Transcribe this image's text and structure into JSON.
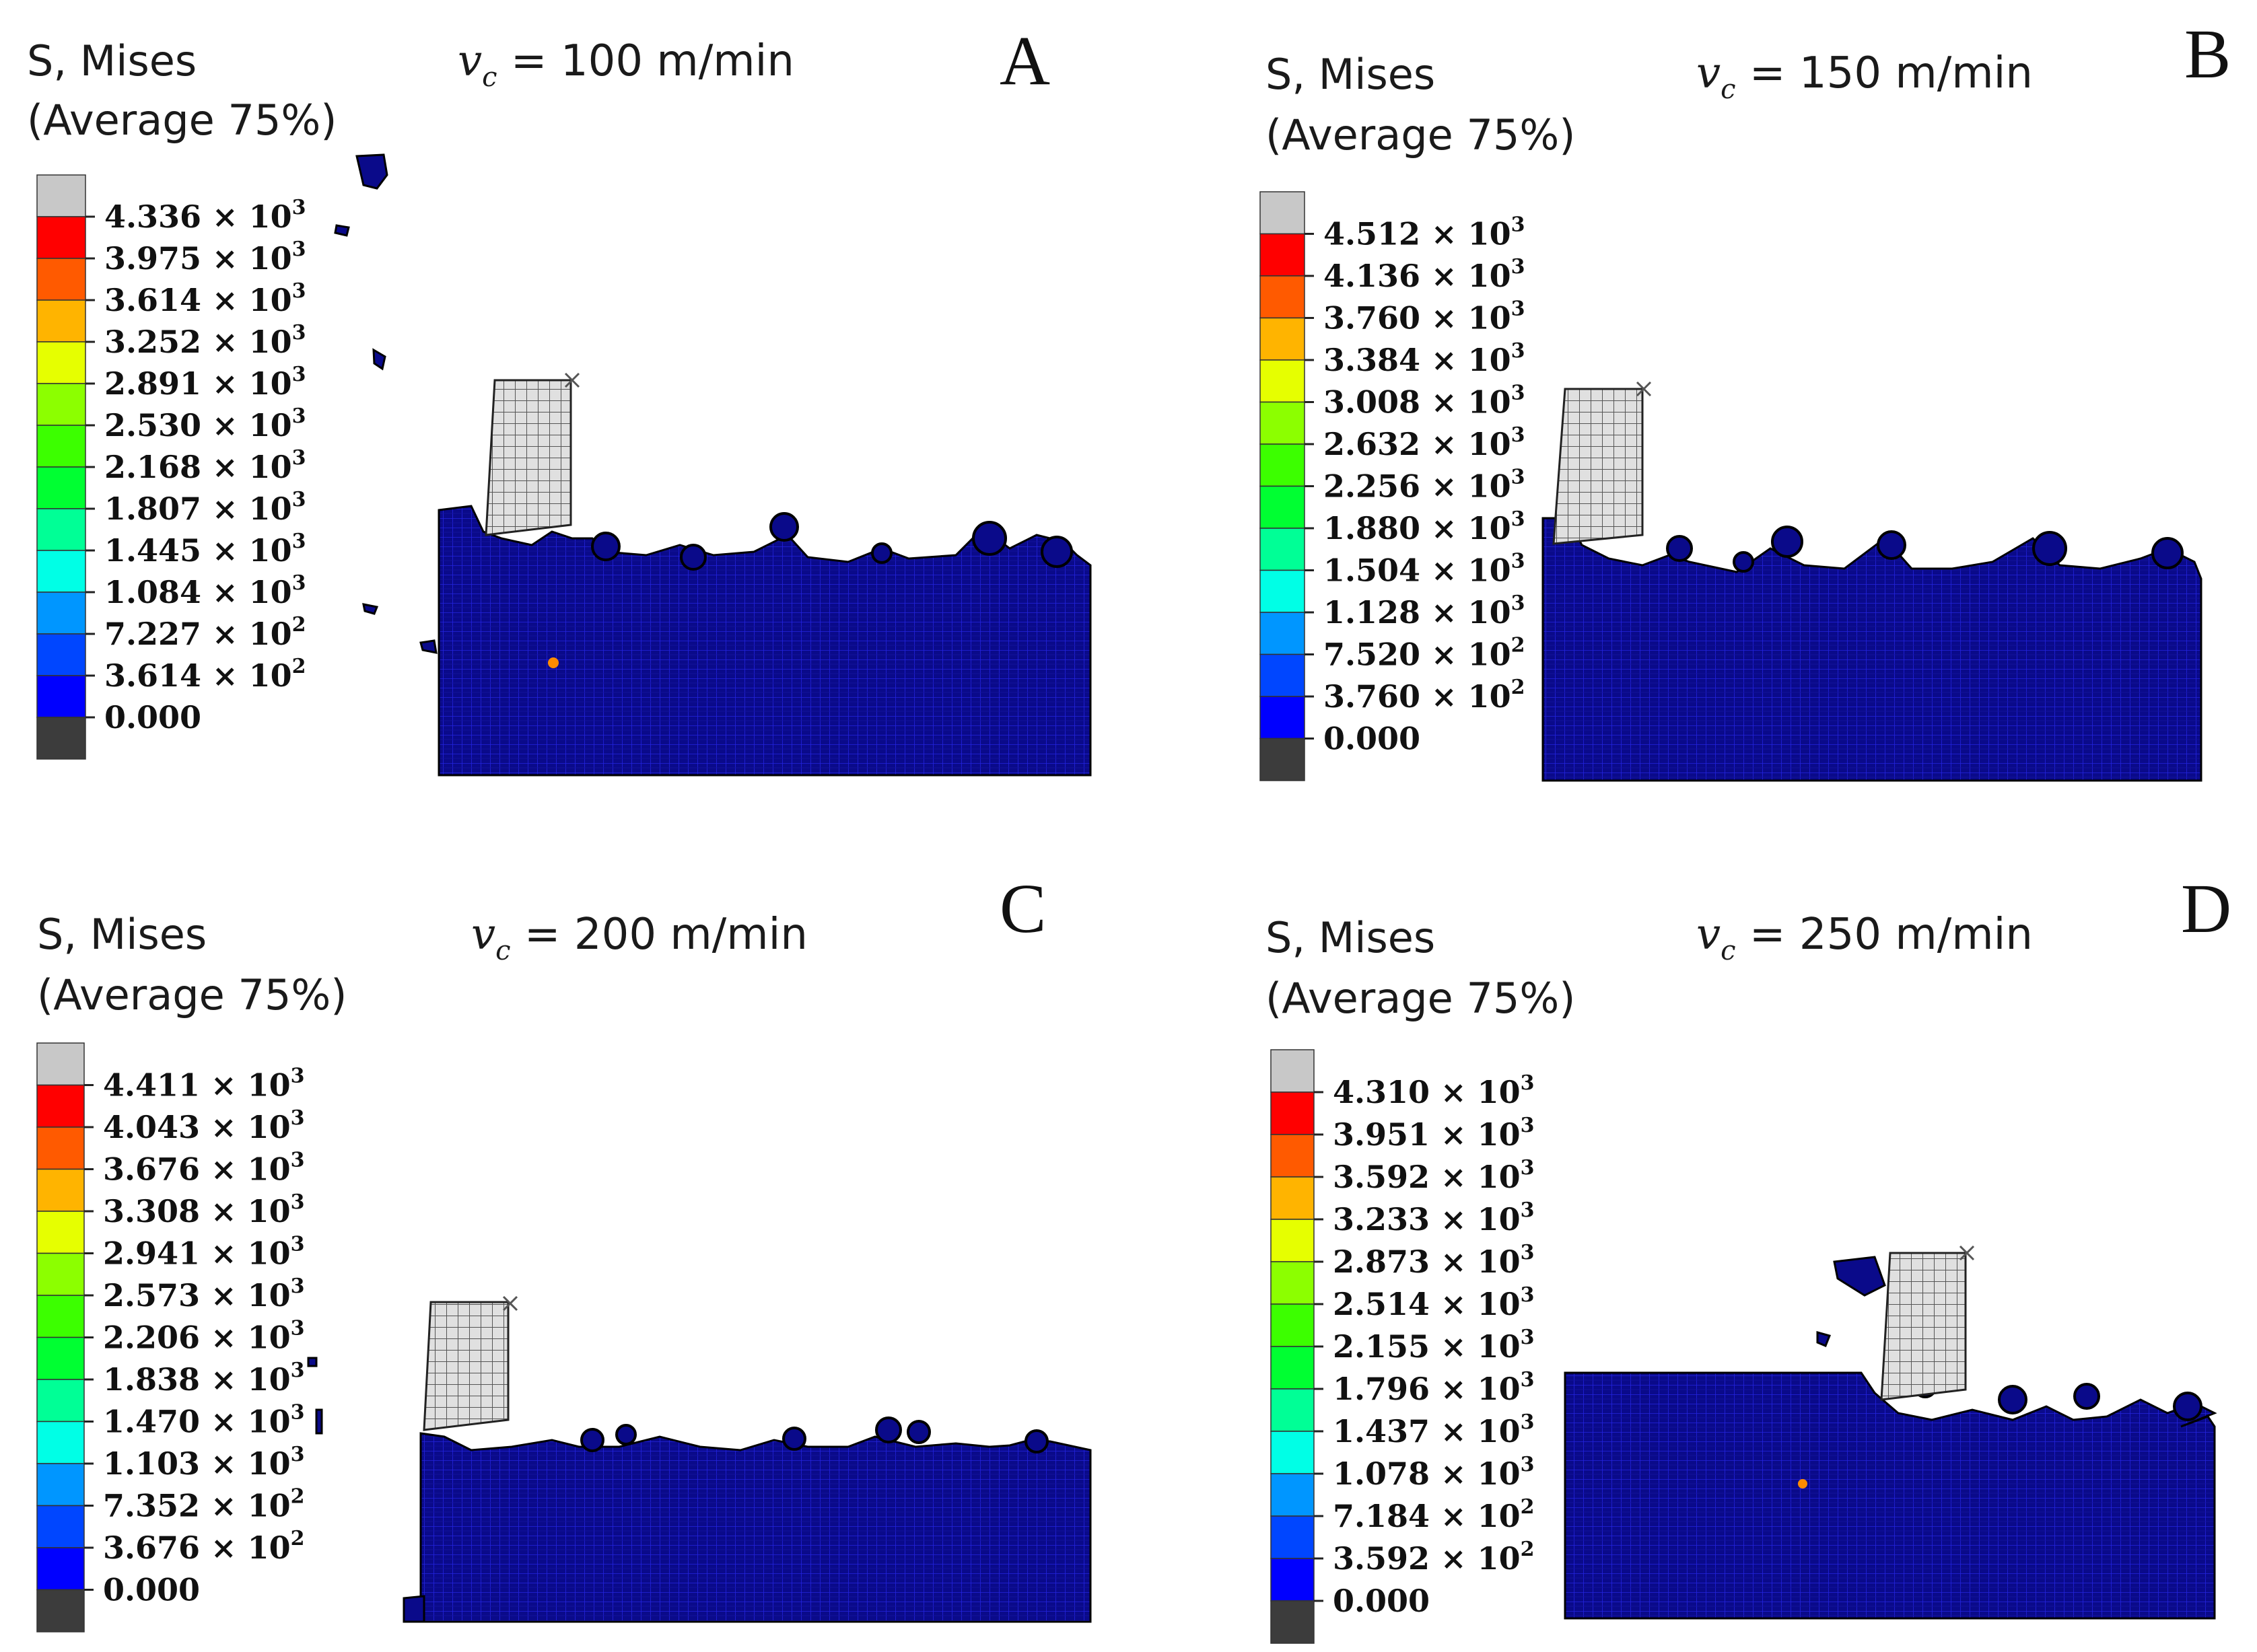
{
  "figure": {
    "panels": [
      {
        "id": "A",
        "letter": "A",
        "title_line1": "S, Mises",
        "title_line2": "(Average 75%)",
        "speed": {
          "symbol": "v",
          "subscript": "c",
          "text": " = 100 m/min"
        },
        "legend_labels": [
          "4.336 × 10³",
          "3.975 × 10³",
          "3.614 × 10³",
          "3.252 × 10³",
          "2.891 × 10³",
          "2.530 × 10³",
          "2.168 × 10³",
          "1.807 × 10³",
          "1.445 × 10³",
          "1.084 × 10³",
          "7.227 × 10²",
          "3.614 × 10²",
          "0.000"
        ]
      },
      {
        "id": "B",
        "letter": "B",
        "title_line1": "S, Mises",
        "title_line2": "(Average 75%)",
        "speed": {
          "symbol": "v",
          "subscript": "c",
          "text": " = 150 m/min"
        },
        "legend_labels": [
          "4.512 × 10³",
          "4.136 × 10³",
          "3.760 × 10³",
          "3.384 × 10³",
          "3.008 × 10³",
          "2.632 × 10³",
          "2.256 × 10³",
          "1.880 × 10³",
          "1.504 × 10³",
          "1.128 × 10³",
          "7.520 × 10²",
          "3.760 × 10²",
          "0.000"
        ]
      },
      {
        "id": "C",
        "letter": "C",
        "title_line1": "S, Mises",
        "title_line2": "(Average 75%)",
        "speed": {
          "symbol": "v",
          "subscript": "c",
          "text": " = 200 m/min"
        },
        "legend_labels": [
          "4.411 × 10³",
          "4.043 × 10³",
          "3.676 × 10³",
          "3.308 × 10³",
          "2.941 × 10³",
          "2.573 × 10³",
          "2.206 × 10³",
          "1.838 × 10³",
          "1.470 × 10³",
          "1.103 × 10³",
          "7.352 × 10²",
          "3.676 × 10²",
          "0.000"
        ]
      },
      {
        "id": "D",
        "letter": "D",
        "title_line1": "S, Mises",
        "title_line2": "(Average 75%)",
        "speed": {
          "symbol": "v",
          "subscript": "c",
          "text": " = 250 m/min"
        },
        "legend_labels": [
          "4.310 × 10³",
          "3.951 × 10³",
          "3.592 × 10³",
          "3.233 × 10³",
          "2.873 × 10³",
          "2.514 × 10³",
          "2.155 × 10³",
          "1.796 × 10³",
          "1.437 × 10³",
          "1.078 × 10³",
          "7.184 × 10²",
          "3.592 × 10²",
          "0.000"
        ]
      }
    ],
    "colorbar_colors": [
      "#c8c8c8",
      "#ff0000",
      "#ff5a00",
      "#ffb400",
      "#e6ff00",
      "#8cff00",
      "#3cff00",
      "#00ff32",
      "#00ff96",
      "#00ffe6",
      "#0096ff",
      "#0046ff",
      "#0000ff",
      "#3c3c3c"
    ],
    "colors": {
      "workpiece": "#0a0a8a",
      "mesh_line": "#1a1ad0",
      "tool_fill": "#dcdcdc",
      "tool_grid": "#555555",
      "hot_spot": "#ff8c00",
      "text": "#111111"
    }
  }
}
